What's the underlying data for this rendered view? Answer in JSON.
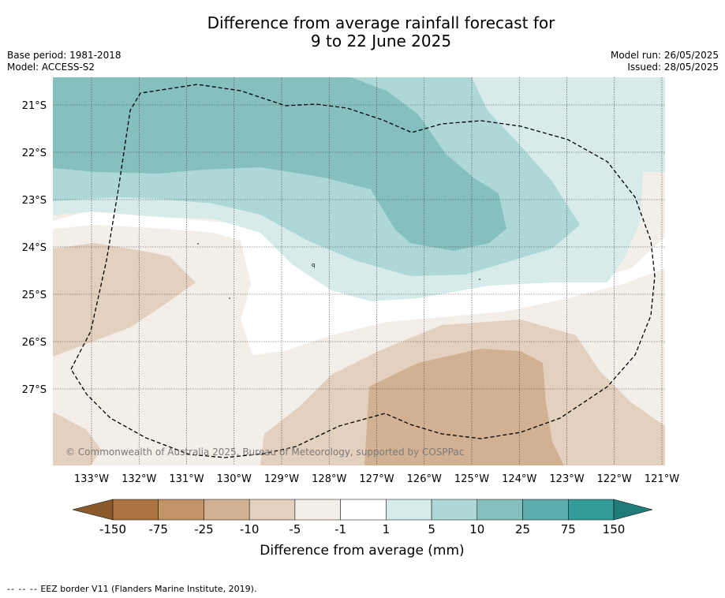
{
  "title": {
    "line1": "Difference from average rainfall forecast for",
    "line2": "9 to 22 June 2025"
  },
  "info_left": {
    "base_period": "Base period: 1981-2018",
    "model": "Model: ACCESS-S2"
  },
  "info_right": {
    "model_run": "Model run: 26/05/2025",
    "issued": "Issued: 28/05/2025"
  },
  "map": {
    "lat_labels": [
      "21°S",
      "22°S",
      "23°S",
      "24°S",
      "25°S",
      "26°S",
      "27°S"
    ],
    "lon_labels": [
      "133°W",
      "132°W",
      "131°W",
      "130°W",
      "129°W",
      "128°W",
      "127°W",
      "126°W",
      "125°W",
      "124°W",
      "123°W",
      "122°W",
      "121°W"
    ],
    "copyright": "© Commonwealth of Australia 2025, Bureau of Meteorology, supported by COSPPac",
    "eez_border_style": "dashed black"
  },
  "colorbar": {
    "tick_labels": [
      "-150",
      "-75",
      "-25",
      "-10",
      "-5",
      "-1",
      "1",
      "5",
      "10",
      "25",
      "75",
      "150"
    ],
    "colors": [
      "#8b5a2b",
      "#a97441",
      "#c29468",
      "#d2b192",
      "#e3d0bf",
      "#f4eee9",
      "#ffffff",
      "#d6ebea",
      "#aed8d7",
      "#85c0be",
      "#5cadab",
      "#339c98",
      "#1f7c78"
    ],
    "label": "Difference from average (mm)"
  },
  "footer": {
    "dash": "-- -- --",
    "text": "EEZ border V11 (Flanders Marine Institute, 2019)."
  }
}
